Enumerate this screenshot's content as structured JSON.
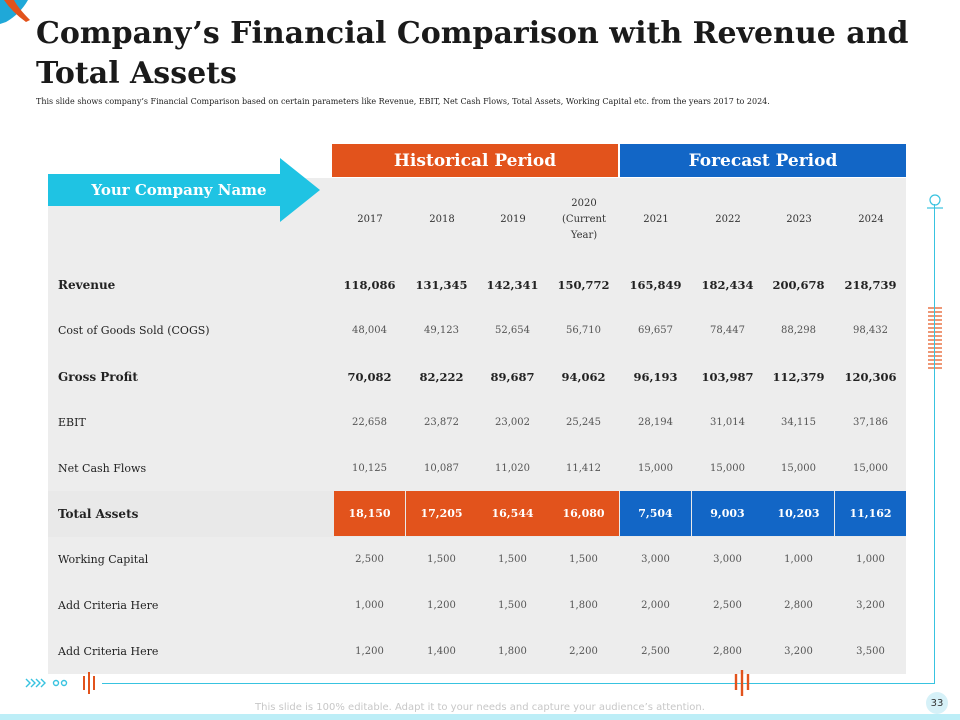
{
  "title": "Company’s Financial Comparison with Revenue and Total Assets",
  "subtitle": "This slide shows company’s Financial Comparison based on certain parameters like Revenue, EBIT, Net Cash Flows, Total Assets, Working Capital etc. from the years 2017 to 2024.",
  "company_label": "Your Company Name",
  "periods": {
    "historical": "Historical Period",
    "forecast": "Forecast Period"
  },
  "years": [
    "2017",
    "2018",
    "2019",
    "2020 (Current Year)",
    "2021",
    "2022",
    "2023",
    "2024"
  ],
  "rows": [
    {
      "label": "Revenue",
      "values": [
        "118,086",
        "131,345",
        "142,341",
        "150,772",
        "165,849",
        "182,434",
        "200,678",
        "218,739"
      ]
    },
    {
      "label": "Cost of Goods Sold (COGS)",
      "values": [
        "48,004",
        "49,123",
        "52,654",
        "56,710",
        "69,657",
        "78,447",
        "88,298",
        "98,432"
      ]
    },
    {
      "label": "Gross Profit",
      "values": [
        "70,082",
        "82,222",
        "89,687",
        "94,062",
        "96,193",
        "103,987",
        "112,379",
        "120,306"
      ]
    },
    {
      "label": "EBIT",
      "values": [
        "22,658",
        "23,872",
        "23,002",
        "25,245",
        "28,194",
        "31,014",
        "34,115",
        "37,186"
      ]
    },
    {
      "label": "Net Cash Flows",
      "values": [
        "10,125",
        "10,087",
        "11,020",
        "11,412",
        "15,000",
        "15,000",
        "15,000",
        "15,000"
      ]
    },
    {
      "label": "Total Assets",
      "values": [
        "18,150",
        "17,205",
        "16,544",
        "16,080",
        "7,504",
        "9,003",
        "10,203",
        "11,162"
      ]
    },
    {
      "label": "Working Capital",
      "values": [
        "2,500",
        "1,500",
        "1,500",
        "1,500",
        "3,000",
        "3,000",
        "1,000",
        "1,000"
      ]
    },
    {
      "label": "Add Criteria Here",
      "values": [
        "1,000",
        "1,200",
        "1,500",
        "1,800",
        "2,000",
        "2,500",
        "2,800",
        "3,200"
      ]
    },
    {
      "label": "Add Criteria Here",
      "values": [
        "1,200",
        "1,400",
        "1,800",
        "2,200",
        "2,500",
        "2,800",
        "3,200",
        "3,500"
      ]
    }
  ],
  "footer_text": "This slide is 100% editable. Adapt it to your needs and capture your audience’s attention.",
  "page_number": "33",
  "colors": {
    "historical": "#e2531c",
    "forecast": "#1266c6",
    "banner": "#1fc3e3",
    "accent_line": "#38c3e0"
  }
}
